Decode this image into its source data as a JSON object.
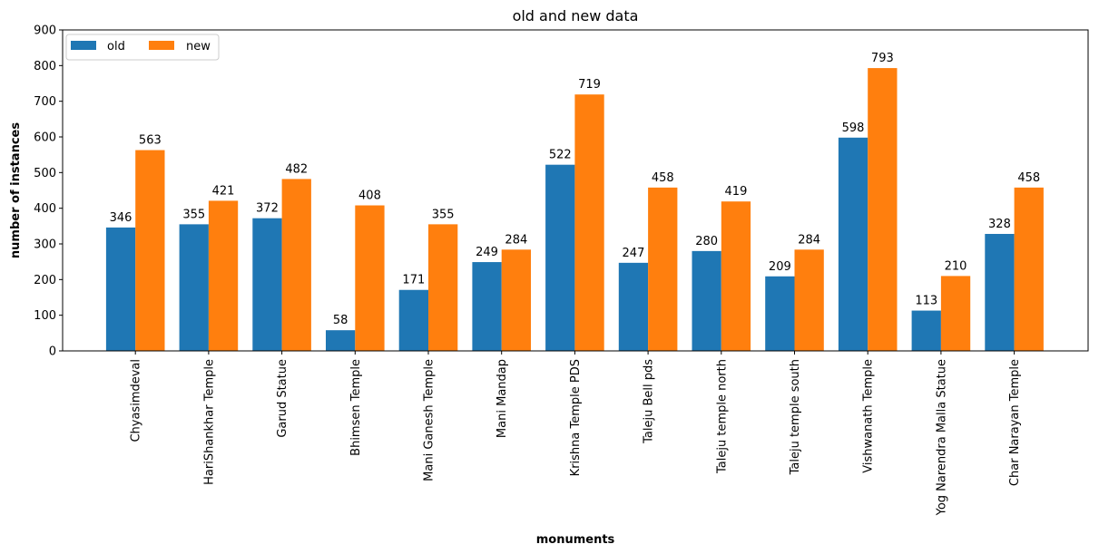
{
  "chart_data": {
    "type": "bar",
    "title": "old and new data",
    "xlabel": "monuments",
    "ylabel": "number of instances",
    "ylim": [
      0,
      900
    ],
    "yticks": [
      0,
      100,
      200,
      300,
      400,
      500,
      600,
      700,
      800,
      900
    ],
    "grid": false,
    "legend_position": "top-left",
    "categories": [
      "Chyasimdeval",
      "HariShankhar Temple",
      "Garud Statue",
      "Bhimsen Temple",
      "Mani Ganesh Temple",
      "Mani Mandap",
      "Krishna Temple PDS",
      "Taleju Bell pds",
      "Taleju temple north",
      "Taleju temple south",
      "Vishwanath Temple",
      "Yog Narendra Malla Statue",
      "Char Narayan Temple"
    ],
    "series": [
      {
        "name": "old",
        "color": "#1f77b4",
        "values": [
          346,
          355,
          372,
          58,
          171,
          249,
          522,
          247,
          280,
          209,
          598,
          113,
          328
        ]
      },
      {
        "name": "new",
        "color": "#ff7f0e",
        "values": [
          563,
          421,
          482,
          408,
          355,
          284,
          719,
          458,
          419,
          284,
          793,
          210,
          458
        ]
      }
    ]
  }
}
